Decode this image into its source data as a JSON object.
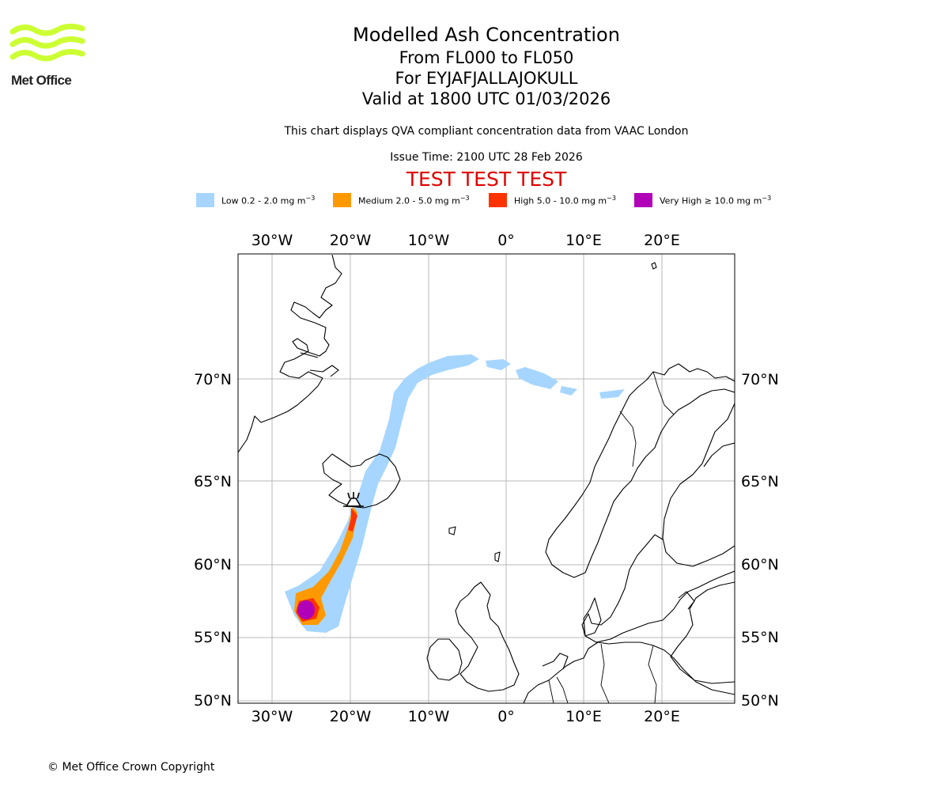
{
  "branding": {
    "logo_text": "Met Office",
    "logo_colors": {
      "waves": "#ccff33"
    }
  },
  "header": {
    "title": "Modelled Ash Concentration",
    "levels": "From FL000 to FL050",
    "volcano": "For EYJAFJALLAJOKULL",
    "valid": "Valid at 1800 UTC 01/03/2026",
    "note": "This chart displays QVA compliant concentration data from VAAC London",
    "issue": "Issue Time: 2100 UTC 28 Feb 2026",
    "test_banner": "TEST TEST TEST"
  },
  "legend": [
    {
      "label": "Low 0.2 - 2.0 mg m",
      "color": "#a6d6ff"
    },
    {
      "label": "Medium 2.0 - 5.0 mg m",
      "color": "#ff9900"
    },
    {
      "label": "High 5.0 - 10.0 mg m",
      "color": "#ff3300"
    },
    {
      "label": "Very High ≥ 10.0 mg m",
      "color": "#b000b8"
    }
  ],
  "legend_unit_exponent": "−3",
  "map": {
    "lon_ticks": [
      "30°W",
      "20°W",
      "10°W",
      "0°",
      "10°E",
      "20°E"
    ],
    "lat_ticks": [
      "70°N",
      "65°N",
      "60°N",
      "55°N",
      "50°N"
    ],
    "volcano_marker": "volcano-icon"
  },
  "footer": {
    "copyright": "© Met Office Crown Copyright"
  }
}
